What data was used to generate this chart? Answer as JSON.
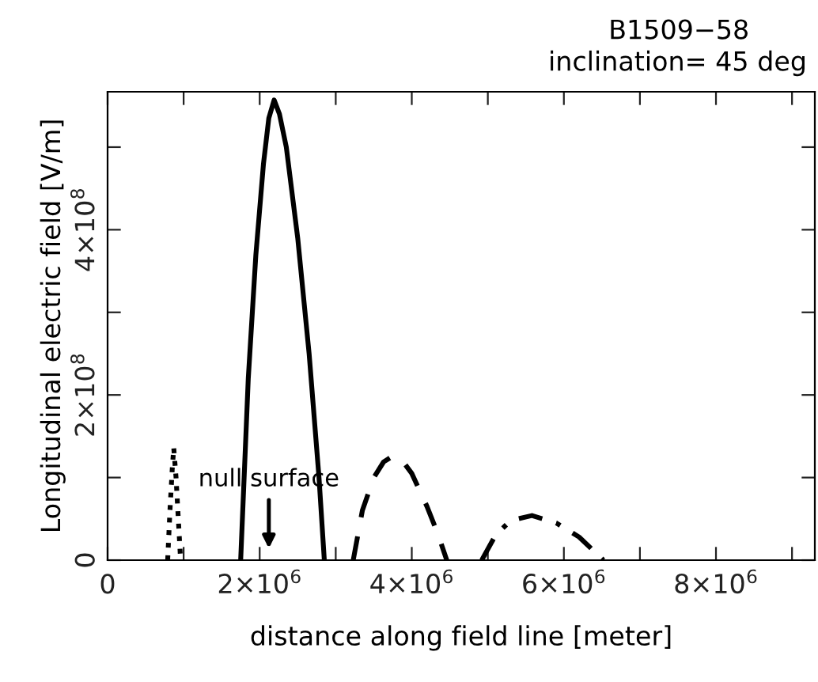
{
  "chart_data": {
    "type": "line",
    "title": "B1509−58",
    "subtitle": "inclination= 45 deg",
    "xlabel": "distance along field line [meter]",
    "ylabel": "Longitudinal electric field [V/m]",
    "series": [
      {
        "color": "#000000",
        "line_style": "dotted",
        "x": [
          790000,
          820000,
          850000,
          870000,
          900000,
          930000,
          960000
        ],
        "values": [
          0,
          60000000,
          110000000,
          136000000,
          100000000,
          50000000,
          0
        ]
      },
      {
        "color": "#000000",
        "line_style": "solid",
        "x": [
          1750000,
          1850000,
          1950000,
          2050000,
          2120000,
          2190000,
          2260000,
          2350000,
          2500000,
          2650000,
          2780000,
          2850000
        ],
        "values": [
          0,
          220000000,
          370000000,
          480000000,
          535000000,
          557000000,
          540000000,
          500000000,
          390000000,
          250000000,
          100000000,
          0
        ]
      },
      {
        "color": "#000000",
        "line_style": "dashed",
        "x": [
          3230000,
          3350000,
          3500000,
          3630000,
          3750000,
          3880000,
          4000000,
          4200000,
          4350000,
          4460000
        ],
        "values": [
          0,
          60000000,
          100000000,
          119000000,
          126000000,
          120000000,
          105000000,
          65000000,
          30000000,
          0
        ]
      },
      {
        "color": "#000000",
        "line_style": "dashdot",
        "x": [
          4920000,
          5100000,
          5300000,
          5580000,
          5900000,
          6200000,
          6520000
        ],
        "values": [
          0,
          30000000,
          48000000,
          54000000,
          45000000,
          28000000,
          0
        ]
      }
    ],
    "annotations": [
      "null surface"
    ],
    "xlim": [
      0,
      9300000
    ],
    "ylim": [
      0,
      567000000
    ],
    "xticks": [
      0,
      {
        "value": 1000000,
        "label": null
      },
      {
        "value": 2000000,
        "label": "2×10$^{6}$"
      },
      {
        "value": 3000000,
        "label": null
      },
      {
        "value": 4000000,
        "label": "4×10$^{6}$"
      },
      {
        "value": 5000000,
        "label": null
      },
      {
        "value": 6000000,
        "label": "6×10$^{6}$"
      },
      {
        "value": 7000000,
        "label": null
      },
      {
        "value": 8000000,
        "label": "8×10$^{6}$"
      },
      {
        "value": 9000000,
        "label": null
      }
    ],
    "yticks": [
      0,
      {
        "value": 100000000,
        "label": null
      },
      {
        "value": 200000000,
        "label": "2×10$^{8}$"
      },
      {
        "value": 300000000,
        "label": null
      },
      {
        "value": 400000000,
        "label": "4×10$^{8}$"
      },
      {
        "value": 500000000,
        "label": null
      }
    ],
    "grid": false,
    "legend": false
  }
}
